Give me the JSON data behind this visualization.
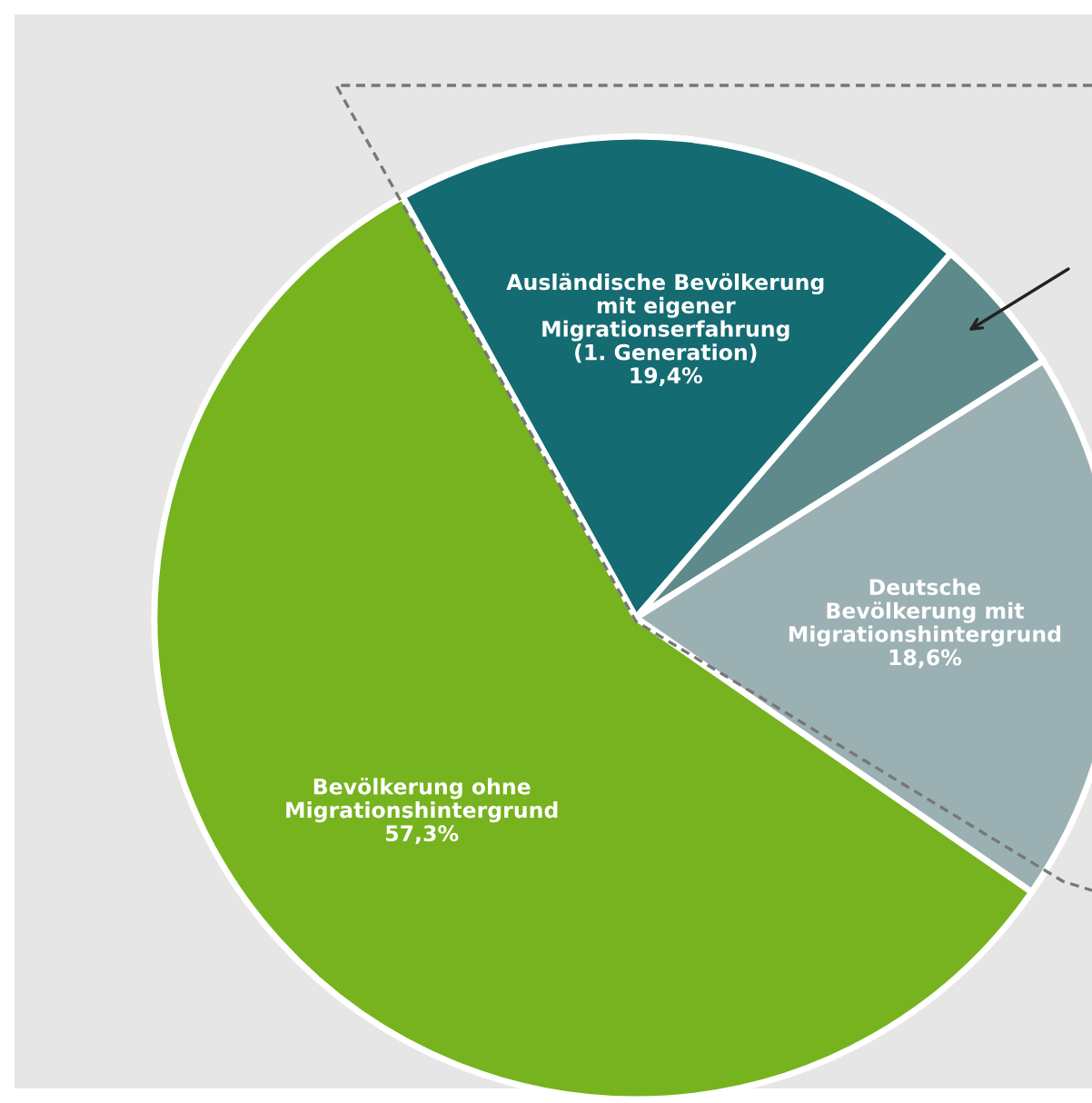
{
  "chart_data": {
    "type": "pie",
    "categories": [
      "Ausländische Bevölkerung\nmit eigener\nMigrationserfahrung\n(1. Generation)",
      null,
      "Deutsche\nBevölkerung mit\nMigrationshintergrund",
      "Bevölkerung ohne\nMigrationshintergrund"
    ],
    "values": [
      19.4,
      4.7,
      18.6,
      57.3
    ],
    "value_labels": [
      "19,4%",
      null,
      "18,6%",
      "57,3%"
    ],
    "colors": [
      "#156b72",
      "#5f8a8c",
      "#9bb0b2",
      "#76b31f"
    ],
    "legend": false
  }
}
